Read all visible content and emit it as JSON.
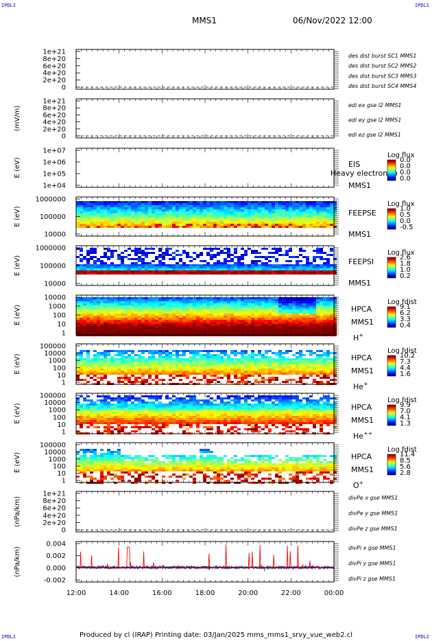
{
  "header": {
    "spacecraft": "MMS1",
    "datetime": "06/Nov/2022 12:00",
    "corner_tag": "IPDLI"
  },
  "footer": {
    "text": "Produced by cl (IRAP)   Printing date: 03/Jan/2025   mms_mms1_srvy_vue_web2.cl"
  },
  "colors": {
    "blue": "#0000cc",
    "magenta": "#cc00cc",
    "red": "#cc0000",
    "green": "#00cc00",
    "plotred": "#ff0000",
    "plotgreen": "#00bb00",
    "plotblue": "#0000ff"
  },
  "chart_data": [
    {
      "id": "des",
      "type": "line",
      "ylabels": [
        "1e+21",
        "8e+20",
        "6e+20",
        "4e+20",
        "2e+20",
        "0"
      ],
      "dashed_zero": true,
      "legend": [
        {
          "text": "des dist burst SC1 MMS1",
          "color": "#0000cc"
        },
        {
          "text": "des dist burst SC2 MMS2",
          "color": "#cc00cc"
        },
        {
          "text": "des dist burst SC3 MMS3",
          "color": "#cc0000"
        },
        {
          "text": "des dist burst SC4 MMS4",
          "color": "#00cc00"
        }
      ]
    },
    {
      "id": "edi",
      "type": "line",
      "ytitle": "(mV/m)",
      "ylabels": [
        "1e+21",
        "8e+20",
        "6e+20",
        "4e+20",
        "2e+20",
        "0"
      ],
      "dashed_zero": true,
      "legend": [
        {
          "text": "edi ex gse l2 MMS1",
          "color": "#cc0000"
        },
        {
          "text": "edi ey gse l2 MMS1",
          "color": "#00cc00"
        },
        {
          "text": "edi ez gse l2 MMS1",
          "color": "#0000cc"
        }
      ]
    },
    {
      "id": "eis",
      "type": "heatmap",
      "ytitle": "E (eV)",
      "ylabels": [
        "1e+07",
        "1e+06",
        "1e+05",
        "1e+04"
      ],
      "side": [
        "EIS",
        "MMS1"
      ],
      "overlay": "Heavy electron to",
      "cbar_title": "Log flux",
      "cbar_ticks": [
        "0.0",
        "0.0",
        "0.0",
        "0.0"
      ]
    },
    {
      "id": "feepse",
      "type": "heatmap",
      "ytitle": "E (eV)",
      "ylabels": [
        "1000000",
        "100000",
        "10000"
      ],
      "side": [
        "FEEPSE",
        "MMS1"
      ],
      "cbar_title": "Log flux",
      "cbar_ticks": [
        "1.0",
        "0.5",
        "0.0",
        "-0.5"
      ]
    },
    {
      "id": "feepsi",
      "type": "heatmap",
      "ytitle": "E (eV)",
      "ylabels": [
        "1000000",
        "100000",
        "10000"
      ],
      "side": [
        "FEEPSI",
        "MMS1"
      ],
      "cbar_title": "Log flux",
      "cbar_ticks": [
        "2.6",
        "1.8",
        "1.0",
        "0.2"
      ]
    },
    {
      "id": "hpca_h",
      "type": "heatmap",
      "ytitle": "E (eV)",
      "ylabels": [
        "10000",
        "1000",
        "100",
        "10",
        "1"
      ],
      "side": [
        "HPCA",
        "MMS1"
      ],
      "species": "H",
      "species_sup": "+",
      "cbar_title": "Log fdist",
      "cbar_ticks": [
        "9.1",
        "6.2",
        "3.3",
        "0.4"
      ]
    },
    {
      "id": "hpca_he",
      "type": "heatmap",
      "ytitle": "E (eV)",
      "ylabels": [
        "100000",
        "10000",
        "1000",
        "100",
        "10",
        "1"
      ],
      "side": [
        "HPCA",
        "MMS1"
      ],
      "species": "He",
      "species_sup": "+",
      "cbar_title": "Log fdist",
      "cbar_ticks": [
        "10.2",
        "7.3",
        "4.4",
        "1.6"
      ]
    },
    {
      "id": "hpca_he2",
      "type": "heatmap",
      "ytitle": "E (eV)",
      "ylabels": [
        "100000",
        "10000",
        "1000",
        "100",
        "10",
        "1"
      ],
      "side": [
        "HPCA",
        "MMS1"
      ],
      "species": "He",
      "species_sup": "++",
      "cbar_title": "Log fdist",
      "cbar_ticks": [
        "9.9",
        "7.0",
        "4.1",
        "1.3"
      ]
    },
    {
      "id": "hpca_o",
      "type": "heatmap",
      "ytitle": "E (eV)",
      "ylabels": [
        "100000",
        "10000",
        "1000",
        "100",
        "10",
        "1"
      ],
      "side": [
        "HPCA",
        "MMS1"
      ],
      "species": "O",
      "species_sup": "+",
      "cbar_title": "Log fdist",
      "cbar_ticks": [
        "11.4",
        "8.5",
        "5.6",
        "2.8"
      ]
    },
    {
      "id": "divpe",
      "type": "line",
      "ytitle": "(nPa/km)",
      "ylabels": [
        "1e+21",
        "8e+20",
        "6e+20",
        "4e+20",
        "2e+20",
        "0"
      ],
      "dashed_zero": true,
      "legend": [
        {
          "text": "divPe x gse MMS1",
          "color": "#cc0000"
        },
        {
          "text": "divPe y gse MMS1",
          "color": "#00cc00"
        },
        {
          "text": "divPe z gse MMS1",
          "color": "#0000cc"
        }
      ]
    },
    {
      "id": "divpi",
      "type": "line",
      "ytitle": "(nPa/km)",
      "ylabels": [
        "0.004",
        "0.002",
        "0.000",
        "-0.002"
      ],
      "ylim": [
        -0.0025,
        0.0048
      ],
      "legend": [
        {
          "text": "divPi x gse MMS1",
          "color": "#cc0000"
        },
        {
          "text": "divPi y gse MMS1",
          "color": "#00cc00"
        },
        {
          "text": "divPi z gse MMS1",
          "color": "#0000cc"
        }
      ]
    }
  ],
  "xaxis": {
    "ticks": [
      "12:00",
      "14:00",
      "16:00",
      "18:00",
      "20:00",
      "22:00",
      "00:00"
    ]
  }
}
